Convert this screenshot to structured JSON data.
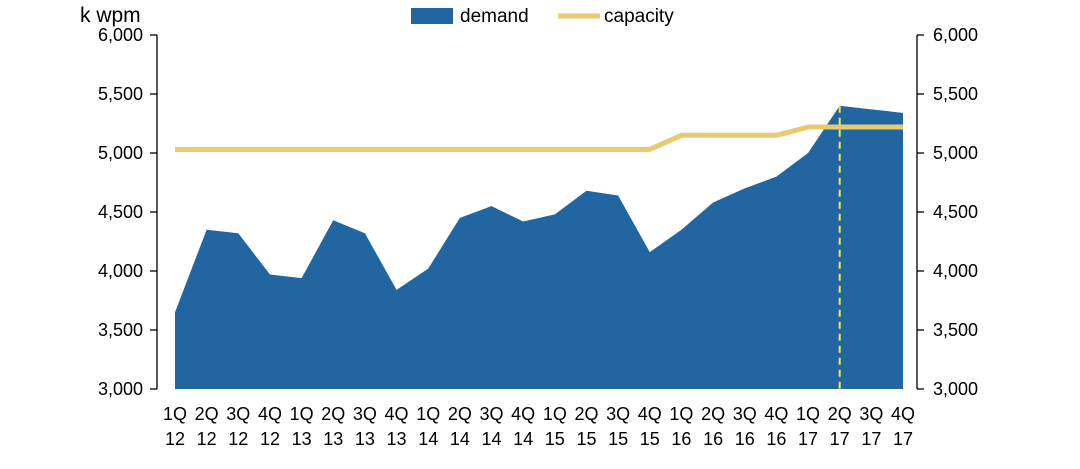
{
  "chart_data": {
    "type": "area",
    "unit_label": "k wpm",
    "categories": [
      "1Q 12",
      "2Q 12",
      "3Q 12",
      "4Q 12",
      "1Q 13",
      "2Q 13",
      "3Q 13",
      "4Q 13",
      "1Q 14",
      "2Q 14",
      "3Q 14",
      "4Q 14",
      "1Q 15",
      "2Q 15",
      "3Q 15",
      "4Q 15",
      "1Q 16",
      "2Q 16",
      "3Q 16",
      "4Q 16",
      "1Q 17",
      "2Q 17",
      "3Q 17",
      "4Q 17"
    ],
    "series": [
      {
        "name": "demand",
        "kind": "area",
        "color": "#2166a1",
        "values": [
          3650,
          4350,
          4320,
          3970,
          3940,
          4430,
          4320,
          3840,
          4020,
          4450,
          4550,
          4420,
          4480,
          4680,
          4640,
          4160,
          4350,
          4580,
          4700,
          4800,
          5000,
          5400,
          5370,
          5340
        ]
      },
      {
        "name": "capacity",
        "kind": "line",
        "color": "#e7cb6e",
        "values": [
          5030,
          5030,
          5030,
          5030,
          5030,
          5030,
          5030,
          5030,
          5030,
          5030,
          5030,
          5030,
          5030,
          5030,
          5030,
          5030,
          5150,
          5150,
          5150,
          5150,
          5220,
          5220,
          5220,
          5220
        ]
      }
    ],
    "ylim": [
      3000,
      6000
    ],
    "yticks": [
      "3,000",
      "3,500",
      "4,000",
      "4,500",
      "5,000",
      "5,500",
      "6,000"
    ],
    "secondary_yticks": [
      "3,000",
      "3,500",
      "4,000",
      "4,500",
      "5,000",
      "5,500",
      "6,000"
    ],
    "marker_category": "2Q 17",
    "marker_color": "#f2e34a",
    "legend_position": "top-center",
    "grid": false
  }
}
